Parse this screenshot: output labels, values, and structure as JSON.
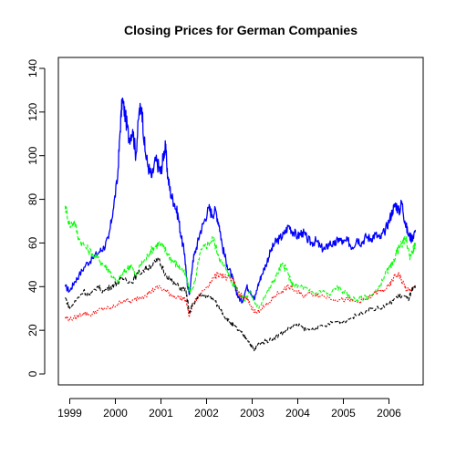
{
  "chart_data": {
    "type": "line",
    "title": "Closing Prices for German Companies",
    "xlabel": "",
    "ylabel": "",
    "xlim": [
      1998.75,
      2006.75
    ],
    "ylim": [
      -5,
      145
    ],
    "x_ticks": [
      1999,
      2000,
      2001,
      2002,
      2003,
      2004,
      2005,
      2006
    ],
    "y_ticks": [
      0,
      20,
      40,
      60,
      80,
      100,
      120,
      140
    ],
    "grid": false,
    "legend": "none",
    "series": [
      {
        "color": "#0000ff",
        "style": "solid",
        "x": [
          1998.9,
          1999.0,
          1999.1,
          1999.2,
          1999.35,
          1999.5,
          1999.65,
          1999.75,
          1999.85,
          1999.95,
          2000.05,
          2000.1,
          2000.15,
          2000.22,
          2000.3,
          2000.38,
          2000.45,
          2000.52,
          2000.58,
          2000.65,
          2000.72,
          2000.8,
          2000.88,
          2000.95,
          2001.0,
          2001.05,
          2001.1,
          2001.15,
          2001.22,
          2001.3,
          2001.38,
          2001.45,
          2001.52,
          2001.58,
          2001.63,
          2001.7,
          2001.78,
          2001.86,
          2001.95,
          2002.05,
          2002.12,
          2002.2,
          2002.28,
          2002.35,
          2002.45,
          2002.55,
          2002.62,
          2002.7,
          2002.78,
          2002.88,
          2002.96,
          2003.05,
          2003.12,
          2003.2,
          2003.3,
          2003.4,
          2003.5,
          2003.6,
          2003.7,
          2003.8,
          2003.9,
          2004.0,
          2004.1,
          2004.2,
          2004.3,
          2004.4,
          2004.5,
          2004.6,
          2004.7,
          2004.8,
          2004.9,
          2005.0,
          2005.1,
          2005.2,
          2005.3,
          2005.4,
          2005.5,
          2005.6,
          2005.7,
          2005.8,
          2005.9,
          2006.0,
          2006.08,
          2006.15,
          2006.22,
          2006.28,
          2006.35,
          2006.42,
          2006.5,
          2006.58
        ],
        "values": [
          40,
          38,
          42,
          45,
          50,
          53,
          56,
          58,
          62,
          75,
          90,
          110,
          126,
          118,
          108,
          112,
          100,
          120,
          122,
          102,
          95,
          90,
          98,
          95,
          92,
          100,
          104,
          90,
          82,
          78,
          72,
          62,
          55,
          40,
          37,
          52,
          58,
          65,
          70,
          76,
          73,
          75,
          68,
          58,
          50,
          45,
          40,
          35,
          33,
          40,
          38,
          34,
          40,
          45,
          50,
          56,
          60,
          62,
          64,
          68,
          65,
          63,
          65,
          62,
          60,
          61,
          58,
          57,
          60,
          59,
          62,
          60,
          61,
          58,
          62,
          60,
          63,
          62,
          64,
          62,
          65,
          70,
          75,
          78,
          74,
          79,
          70,
          64,
          62,
          66
        ]
      },
      {
        "color": "#00ff00",
        "style": "dashed",
        "x": [
          1998.9,
          1999.0,
          1999.1,
          1999.2,
          1999.35,
          1999.5,
          1999.65,
          1999.75,
          1999.85,
          1999.95,
          2000.05,
          2000.15,
          2000.25,
          2000.35,
          2000.45,
          2000.55,
          2000.65,
          2000.75,
          2000.85,
          2000.95,
          2001.05,
          2001.15,
          2001.25,
          2001.35,
          2001.45,
          2001.55,
          2001.6,
          2001.65,
          2001.75,
          2001.85,
          2001.95,
          2002.05,
          2002.15,
          2002.25,
          2002.35,
          2002.45,
          2002.55,
          2002.65,
          2002.75,
          2002.85,
          2002.95,
          2003.05,
          2003.15,
          2003.25,
          2003.35,
          2003.45,
          2003.55,
          2003.65,
          2003.75,
          2003.85,
          2003.95,
          2004.1,
          2004.25,
          2004.4,
          2004.55,
          2004.7,
          2004.85,
          2005.0,
          2005.15,
          2005.3,
          2005.45,
          2005.6,
          2005.75,
          2005.9,
          2006.0,
          2006.08,
          2006.15,
          2006.22,
          2006.3,
          2006.38,
          2006.45,
          2006.52,
          2006.58
        ],
        "values": [
          77,
          68,
          70,
          62,
          58,
          55,
          52,
          50,
          48,
          44,
          42,
          46,
          48,
          50,
          44,
          50,
          52,
          56,
          58,
          60,
          58,
          55,
          52,
          50,
          48,
          45,
          40,
          38,
          42,
          55,
          58,
          60,
          62,
          55,
          50,
          48,
          42,
          40,
          36,
          34,
          38,
          33,
          30,
          35,
          38,
          42,
          46,
          50,
          48,
          42,
          40,
          40,
          38,
          37,
          38,
          36,
          40,
          38,
          35,
          34,
          35,
          36,
          38,
          45,
          48,
          50,
          55,
          58,
          60,
          62,
          54,
          56,
          60
        ]
      },
      {
        "color": "#ff0000",
        "style": "dotted",
        "x": [
          1998.9,
          1999.0,
          1999.15,
          1999.3,
          1999.45,
          1999.6,
          1999.75,
          1999.9,
          2000.05,
          2000.2,
          2000.35,
          2000.5,
          2000.65,
          2000.8,
          2000.95,
          2001.1,
          2001.25,
          2001.4,
          2001.55,
          2001.62,
          2001.7,
          2001.85,
          2002.0,
          2002.15,
          2002.3,
          2002.45,
          2002.6,
          2002.7,
          2002.8,
          2002.9,
          2003.0,
          2003.1,
          2003.2,
          2003.35,
          2003.5,
          2003.65,
          2003.8,
          2003.95,
          2004.1,
          2004.3,
          2004.5,
          2004.7,
          2004.9,
          2005.1,
          2005.3,
          2005.5,
          2005.7,
          2005.85,
          2006.0,
          2006.1,
          2006.2,
          2006.3,
          2006.4,
          2006.5,
          2006.58
        ],
        "values": [
          26,
          25,
          26,
          28,
          27,
          29,
          30,
          30,
          32,
          34,
          33,
          35,
          36,
          38,
          40,
          38,
          36,
          35,
          34,
          26,
          32,
          36,
          40,
          44,
          46,
          44,
          42,
          37,
          35,
          34,
          30,
          28,
          30,
          32,
          36,
          38,
          40,
          38,
          36,
          37,
          36,
          35,
          34,
          34,
          33,
          34,
          37,
          38,
          40,
          44,
          46,
          42,
          38,
          39,
          40
        ]
      },
      {
        "color": "#000000",
        "style": "dashed",
        "x": [
          1998.9,
          1999.0,
          1999.15,
          1999.3,
          1999.45,
          1999.6,
          1999.75,
          1999.9,
          2000.05,
          2000.2,
          2000.35,
          2000.5,
          2000.65,
          2000.8,
          2000.95,
          2001.1,
          2001.25,
          2001.4,
          2001.55,
          2001.62,
          2001.7,
          2001.85,
          2002.0,
          2002.15,
          2002.3,
          2002.4,
          2002.5,
          2002.6,
          2002.7,
          2002.8,
          2002.9,
          2003.0,
          2003.05,
          2003.15,
          2003.3,
          2003.45,
          2003.6,
          2003.75,
          2003.9,
          2004.05,
          2004.2,
          2004.4,
          2004.6,
          2004.8,
          2005.0,
          2005.2,
          2005.4,
          2005.6,
          2005.8,
          2006.0,
          2006.15,
          2006.3,
          2006.42,
          2006.5,
          2006.58
        ],
        "values": [
          35,
          30,
          34,
          38,
          36,
          40,
          38,
          40,
          42,
          44,
          42,
          46,
          48,
          50,
          52,
          46,
          42,
          40,
          38,
          28,
          32,
          36,
          36,
          34,
          30,
          26,
          24,
          22,
          20,
          18,
          16,
          12,
          11,
          14,
          15,
          16,
          18,
          20,
          22,
          22,
          20,
          21,
          22,
          24,
          24,
          26,
          28,
          30,
          30,
          32,
          35,
          36,
          34,
          38,
          40
        ]
      }
    ]
  }
}
